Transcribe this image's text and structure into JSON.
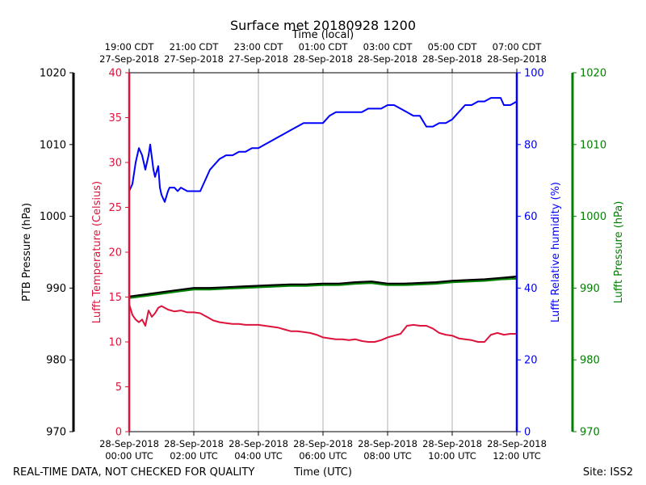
{
  "chart_data": {
    "type": "line",
    "title": "Surface met 20180928 1200",
    "top_axis_label": "Time (local)",
    "bottom_axis_label": "Time (UTC)",
    "footer_left": "REAL-TIME DATA, NOT CHECKED FOR QUALITY",
    "footer_right": "Site: ISS2",
    "x_range_hours_utc": [
      0,
      12
    ],
    "grid": true,
    "bottom_ticks": [
      {
        "h": 0,
        "l1": "28-Sep-2018",
        "l2": "00:00 UTC"
      },
      {
        "h": 2,
        "l1": "28-Sep-2018",
        "l2": "02:00 UTC"
      },
      {
        "h": 4,
        "l1": "28-Sep-2018",
        "l2": "04:00 UTC"
      },
      {
        "h": 6,
        "l1": "28-Sep-2018",
        "l2": "06:00 UTC"
      },
      {
        "h": 8,
        "l1": "28-Sep-2018",
        "l2": "08:00 UTC"
      },
      {
        "h": 10,
        "l1": "28-Sep-2018",
        "l2": "10:00 UTC"
      },
      {
        "h": 12,
        "l1": "28-Sep-2018",
        "l2": "12:00 UTC"
      }
    ],
    "top_ticks": [
      {
        "h": 0,
        "l1": "19:00 CDT",
        "l2": "27-Sep-2018"
      },
      {
        "h": 2,
        "l1": "21:00 CDT",
        "l2": "27-Sep-2018"
      },
      {
        "h": 4,
        "l1": "23:00 CDT",
        "l2": "27-Sep-2018"
      },
      {
        "h": 6,
        "l1": "01:00 CDT",
        "l2": "28-Sep-2018"
      },
      {
        "h": 8,
        "l1": "03:00 CDT",
        "l2": "28-Sep-2018"
      },
      {
        "h": 10,
        "l1": "05:00 CDT",
        "l2": "28-Sep-2018"
      },
      {
        "h": 12,
        "l1": "07:00 CDT",
        "l2": "28-Sep-2018"
      }
    ],
    "axes": [
      {
        "id": "ptb",
        "label": "PTB Pressure (hPa)",
        "color": "#000000",
        "ylim": [
          970,
          1020
        ],
        "ticks": [
          970,
          980,
          990,
          1000,
          1010,
          1020
        ]
      },
      {
        "id": "temp",
        "label": "Lufft Temperature (Celsius)",
        "color": "#dc143c",
        "ylim": [
          0,
          40
        ],
        "ticks": [
          0,
          5,
          10,
          15,
          20,
          25,
          30,
          35,
          40
        ]
      },
      {
        "id": "rh",
        "label": "Lufft Relative humidity (%)",
        "color": "#0000ff",
        "ylim": [
          0,
          100
        ],
        "ticks": [
          0,
          20,
          40,
          60,
          80,
          100
        ]
      },
      {
        "id": "lp",
        "label": "Lufft Pressure (hPa)",
        "color": "#008000",
        "ylim": [
          970,
          1020
        ],
        "ticks": [
          970,
          980,
          990,
          1000,
          1010,
          1020
        ]
      }
    ],
    "series": [
      {
        "name": "Lufft Relative humidity",
        "axis": "rh",
        "color": "#0000ff",
        "x": [
          0,
          0.1,
          0.2,
          0.3,
          0.4,
          0.5,
          0.6,
          0.65,
          0.75,
          0.8,
          0.9,
          0.95,
          1.0,
          1.1,
          1.2,
          1.25,
          1.4,
          1.5,
          1.6,
          1.8,
          2.0,
          2.2,
          2.3,
          2.4,
          2.5,
          2.6,
          2.8,
          3.0,
          3.2,
          3.4,
          3.6,
          3.8,
          4.0,
          4.2,
          4.4,
          4.6,
          4.8,
          5.0,
          5.2,
          5.4,
          5.6,
          5.8,
          6.0,
          6.2,
          6.4,
          6.6,
          6.8,
          7.0,
          7.2,
          7.4,
          7.6,
          7.8,
          8.0,
          8.2,
          8.4,
          8.6,
          8.8,
          9.0,
          9.2,
          9.4,
          9.6,
          9.8,
          10.0,
          10.2,
          10.4,
          10.6,
          10.8,
          11.0,
          11.2,
          11.4,
          11.5,
          11.6,
          11.8,
          12.0
        ],
        "y": [
          67,
          69,
          75,
          79,
          77,
          73,
          77,
          80,
          73,
          71,
          74,
          68,
          66,
          64,
          67,
          68,
          68,
          67,
          68,
          67,
          67,
          67,
          69,
          71,
          73,
          74,
          76,
          77,
          77,
          78,
          78,
          79,
          79,
          80,
          81,
          82,
          83,
          84,
          85,
          86,
          86,
          86,
          86,
          88,
          89,
          89,
          89,
          89,
          89,
          90,
          90,
          90,
          91,
          91,
          90,
          89,
          88,
          88,
          85,
          85,
          86,
          86,
          87,
          89,
          91,
          91,
          92,
          92,
          93,
          93,
          93,
          91,
          91,
          92
        ]
      },
      {
        "name": "Lufft Temperature",
        "axis": "temp",
        "color": "#dc143c",
        "x": [
          0,
          0.1,
          0.2,
          0.3,
          0.4,
          0.5,
          0.6,
          0.7,
          0.8,
          0.9,
          1.0,
          1.1,
          1.2,
          1.4,
          1.6,
          1.8,
          2.0,
          2.2,
          2.4,
          2.6,
          2.8,
          3.0,
          3.2,
          3.4,
          3.6,
          3.8,
          4.0,
          4.2,
          4.4,
          4.6,
          4.8,
          5.0,
          5.2,
          5.4,
          5.6,
          5.8,
          6.0,
          6.2,
          6.4,
          6.6,
          6.8,
          7.0,
          7.2,
          7.4,
          7.6,
          7.8,
          8.0,
          8.2,
          8.4,
          8.6,
          8.8,
          9.0,
          9.2,
          9.4,
          9.6,
          9.8,
          10.0,
          10.2,
          10.4,
          10.6,
          10.8,
          11.0,
          11.2,
          11.4,
          11.6,
          11.8,
          12.0
        ],
        "y": [
          14.2,
          13.0,
          12.5,
          12.2,
          12.5,
          11.8,
          13.5,
          12.8,
          13.2,
          13.8,
          14.0,
          13.8,
          13.6,
          13.4,
          13.5,
          13.3,
          13.3,
          13.2,
          12.8,
          12.4,
          12.2,
          12.1,
          12.0,
          12.0,
          11.9,
          11.9,
          11.9,
          11.8,
          11.7,
          11.6,
          11.4,
          11.2,
          11.2,
          11.1,
          11.0,
          10.8,
          10.5,
          10.4,
          10.3,
          10.3,
          10.2,
          10.3,
          10.1,
          10.0,
          10.0,
          10.2,
          10.5,
          10.7,
          10.9,
          11.8,
          11.9,
          11.8,
          11.8,
          11.5,
          11.0,
          10.8,
          10.7,
          10.4,
          10.3,
          10.2,
          10.0,
          10.0,
          10.8,
          11.0,
          10.8,
          10.9,
          10.9
        ]
      },
      {
        "name": "PTB Pressure",
        "axis": "ptb",
        "color": "#000000",
        "x": [
          0,
          0.5,
          1.0,
          1.5,
          2.0,
          2.5,
          3.0,
          3.5,
          4.0,
          4.5,
          5.0,
          5.5,
          6.0,
          6.5,
          7.0,
          7.5,
          8.0,
          8.5,
          9.0,
          9.5,
          10.0,
          10.5,
          11.0,
          11.5,
          12.0
        ],
        "y": [
          988.8,
          989.1,
          989.4,
          989.7,
          990.0,
          990.0,
          990.1,
          990.2,
          990.3,
          990.4,
          990.5,
          990.5,
          990.6,
          990.6,
          990.8,
          990.9,
          990.6,
          990.6,
          990.7,
          990.8,
          991.0,
          991.1,
          991.2,
          991.4,
          991.6
        ]
      },
      {
        "name": "Lufft Pressure",
        "axis": "lp",
        "color": "#008000",
        "x": [
          0,
          0.5,
          1.0,
          1.5,
          2.0,
          2.5,
          3.0,
          3.5,
          4.0,
          4.5,
          5.0,
          5.5,
          6.0,
          6.5,
          7.0,
          7.5,
          8.0,
          8.5,
          9.0,
          9.5,
          10.0,
          10.5,
          11.0,
          11.5,
          12.0
        ],
        "y": [
          988.6,
          988.9,
          989.2,
          989.5,
          989.8,
          989.8,
          989.9,
          990.0,
          990.1,
          990.2,
          990.3,
          990.3,
          990.4,
          990.4,
          990.6,
          990.7,
          990.4,
          990.4,
          990.5,
          990.6,
          990.8,
          990.9,
          991.0,
          991.2,
          991.3
        ]
      }
    ]
  }
}
